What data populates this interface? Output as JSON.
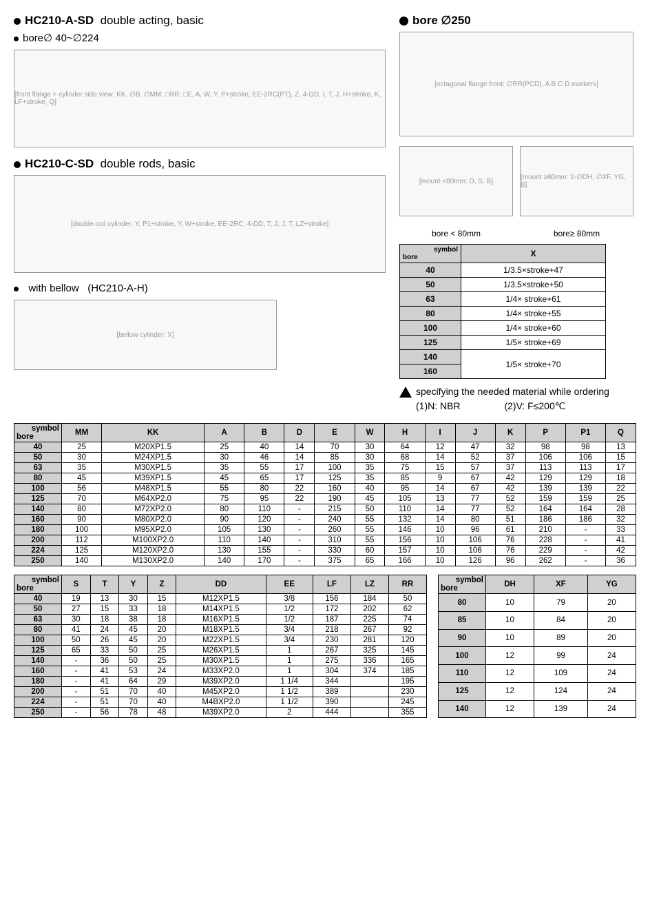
{
  "section1": {
    "title": "HC210-A-SD",
    "subtitle": "double acting, basic",
    "bore": "bore∅ 40~∅224"
  },
  "section2": {
    "title": "HC210-C-SD",
    "subtitle": "double rods, basic"
  },
  "section3": {
    "bellow": "with bellow",
    "code": "(HC210-A-H)"
  },
  "right": {
    "title": "bore ∅250",
    "bore_lt": "bore < 80mm",
    "bore_ge": "bore≥ 80mm"
  },
  "xTable": {
    "header_symbol": "symbol",
    "header_bore": "bore",
    "col_x": "X",
    "rows": [
      {
        "b": "40",
        "x": "1/3.5×stroke+47"
      },
      {
        "b": "50",
        "x": "1/3.5×stroke+50"
      },
      {
        "b": "63",
        "x": "1/4× stroke+61"
      },
      {
        "b": "80",
        "x": "1/4× stroke+55"
      },
      {
        "b": "100",
        "x": "1/4× stroke+60"
      },
      {
        "b": "125",
        "x": "1/5× stroke+69"
      },
      {
        "b": "140",
        "x": "1/5× stroke+70",
        "rowspan": true
      },
      {
        "b": "160"
      }
    ]
  },
  "note": {
    "text": "specifying the needed material while ordering",
    "n1": "(1)N: NBR",
    "n2": "(2)V: F≤200℃"
  },
  "mainTable": {
    "header": [
      "bore \\ symbol",
      "MM",
      "KK",
      "A",
      "B",
      "D",
      "E",
      "W",
      "H",
      "I",
      "J",
      "K",
      "P",
      "P1",
      "Q"
    ],
    "rows": [
      [
        "40",
        "25",
        "M20XP1.5",
        "25",
        "40",
        "14",
        "70",
        "30",
        "64",
        "12",
        "47",
        "32",
        "98",
        "98",
        "13"
      ],
      [
        "50",
        "30",
        "M24XP1.5",
        "30",
        "46",
        "14",
        "85",
        "30",
        "68",
        "14",
        "52",
        "37",
        "106",
        "106",
        "15"
      ],
      [
        "63",
        "35",
        "M30XP1.5",
        "35",
        "55",
        "17",
        "100",
        "35",
        "75",
        "15",
        "57",
        "37",
        "113",
        "113",
        "17"
      ],
      [
        "80",
        "45",
        "M39XP1.5",
        "45",
        "65",
        "17",
        "125",
        "35",
        "85",
        "9",
        "67",
        "42",
        "129",
        "129",
        "18"
      ],
      [
        "100",
        "56",
        "M48XP1.5",
        "55",
        "80",
        "22",
        "160",
        "40",
        "95",
        "14",
        "67",
        "42",
        "139",
        "139",
        "22"
      ],
      [
        "125",
        "70",
        "M64XP2.0",
        "75",
        "95",
        "22",
        "190",
        "45",
        "105",
        "13",
        "77",
        "52",
        "159",
        "159",
        "25"
      ],
      [
        "140",
        "80",
        "M72XP2.0",
        "80",
        "110",
        "-",
        "215",
        "50",
        "110",
        "14",
        "77",
        "52",
        "164",
        "164",
        "28"
      ],
      [
        "160",
        "90",
        "M80XP2.0",
        "90",
        "120",
        "-",
        "240",
        "55",
        "132",
        "14",
        "80",
        "51",
        "186",
        "186",
        "32"
      ],
      [
        "180",
        "100",
        "M95XP2.0",
        "105",
        "130",
        "-",
        "260",
        "55",
        "146",
        "10",
        "96",
        "61",
        "210",
        "-",
        "33"
      ],
      [
        "200",
        "112",
        "M100XP2.0",
        "110",
        "140",
        "-",
        "310",
        "55",
        "156",
        "10",
        "106",
        "76",
        "228",
        "-",
        "41"
      ],
      [
        "224",
        "125",
        "M120XP2.0",
        "130",
        "155",
        "-",
        "330",
        "60",
        "157",
        "10",
        "106",
        "76",
        "229",
        "-",
        "42"
      ],
      [
        "250",
        "140",
        "M130XP2.0",
        "140",
        "170",
        "-",
        "375",
        "65",
        "166",
        "10",
        "126",
        "96",
        "262",
        "-",
        "36"
      ]
    ]
  },
  "secTable": {
    "header": [
      "bore \\ symbol",
      "S",
      "T",
      "Y",
      "Z",
      "DD",
      "EE",
      "LF",
      "LZ",
      "RR"
    ],
    "rows": [
      [
        "40",
        "19",
        "13",
        "30",
        "15",
        "M12XP1.5",
        "3/8",
        "156",
        "184",
        "50"
      ],
      [
        "50",
        "27",
        "15",
        "33",
        "18",
        "M14XP1.5",
        "1/2",
        "172",
        "202",
        "62"
      ],
      [
        "63",
        "30",
        "18",
        "38",
        "18",
        "M16XP1.5",
        "1/2",
        "187",
        "225",
        "74"
      ],
      [
        "80",
        "41",
        "24",
        "45",
        "20",
        "M18XP1.5",
        "3/4",
        "218",
        "267",
        "92"
      ],
      [
        "100",
        "50",
        "26",
        "45",
        "20",
        "M22XP1.5",
        "3/4",
        "230",
        "281",
        "120"
      ],
      [
        "125",
        "65",
        "33",
        "50",
        "25",
        "M26XP1.5",
        "1",
        "267",
        "325",
        "145"
      ],
      [
        "140",
        "-",
        "36",
        "50",
        "25",
        "M30XP1.5",
        "1",
        "275",
        "336",
        "165"
      ],
      [
        "160",
        "-",
        "41",
        "53",
        "24",
        "M33XP2.0",
        "1",
        "304",
        "374",
        "185"
      ],
      [
        "180",
        "-",
        "41",
        "64",
        "29",
        "M39XP2.0",
        "1 1/4",
        "344",
        "",
        "195"
      ],
      [
        "200",
        "-",
        "51",
        "70",
        "40",
        "M45XP2.0",
        "1 1/2",
        "389",
        "",
        "230"
      ],
      [
        "224",
        "-",
        "51",
        "70",
        "40",
        "M4BXP2.0",
        "1 1/2",
        "390",
        "",
        "245"
      ],
      [
        "250",
        "-",
        "56",
        "78",
        "48",
        "M39XP2.0",
        "2",
        "444",
        "",
        "355"
      ]
    ]
  },
  "thirdTable": {
    "header": [
      "bore \\ symbol",
      "DH",
      "XF",
      "YG"
    ],
    "rows": [
      [
        "80",
        "10",
        "79",
        "20"
      ],
      [
        "85",
        "10",
        "84",
        "20"
      ],
      [
        "90",
        "10",
        "89",
        "20"
      ],
      [
        "100",
        "12",
        "99",
        "24"
      ],
      [
        "110",
        "12",
        "109",
        "24"
      ],
      [
        "125",
        "12",
        "124",
        "24"
      ],
      [
        "140",
        "12",
        "139",
        "24"
      ]
    ]
  },
  "diagLabels": {
    "d1": "[front flange + cylinder side view: KK, ∅B, ∅MM, □RR, □E, A, W, Y, P+stroke, EE-2RC(PT), Z, 4-DD, I, T, J, H+stroke, K, LF+stroke, Q]",
    "d2": "[double-rod cylinder: Y, P1+stroke, Y, W+stroke, EE-2RC, 4-DD, T, J, J, T, LZ+stroke]",
    "d3": "[bellow cylinder: X]",
    "d4": "[octagonal flange front: ∅RR(PCD), A B C D markers]",
    "d5": "[mount <80mm: D, S, B]",
    "d6": "[mount ≥80mm: 2-∅DH, ∅XF, YG, B]"
  }
}
